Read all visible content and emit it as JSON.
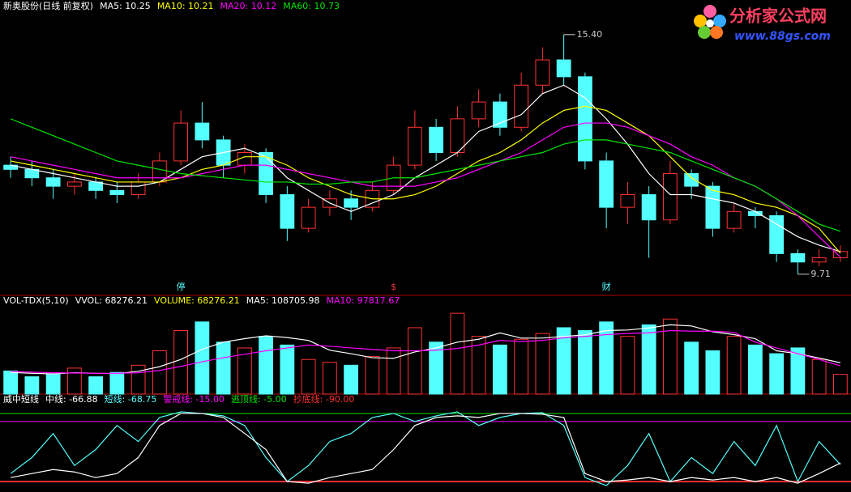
{
  "chart_data": [
    {
      "type": "candlestick",
      "title": "新奥股份(日线 前复权)",
      "open": [
        12.3,
        12.2,
        12.0,
        11.8,
        11.9,
        11.7,
        11.6,
        11.9,
        12.4,
        13.3,
        12.9,
        12.3,
        12.6,
        11.6,
        10.8,
        11.3,
        11.5,
        11.3,
        11.7,
        12.3,
        13.2,
        12.6,
        13.4,
        13.8,
        13.2,
        14.2,
        14.8,
        14.4,
        12.4,
        11.3,
        11.6,
        11.0,
        12.1,
        11.8,
        10.8,
        11.2,
        11.1,
        10.2,
        10.0,
        10.1
      ],
      "close": [
        12.2,
        12.0,
        11.8,
        11.9,
        11.7,
        11.6,
        11.9,
        12.4,
        13.3,
        12.9,
        12.3,
        12.6,
        11.6,
        10.8,
        11.3,
        11.5,
        11.3,
        11.7,
        12.3,
        13.2,
        12.6,
        13.4,
        13.8,
        13.2,
        14.2,
        14.8,
        14.4,
        12.4,
        11.3,
        11.6,
        11.0,
        12.1,
        11.8,
        10.8,
        11.2,
        11.1,
        10.2,
        10.0,
        10.1,
        10.25
      ],
      "high": [
        12.5,
        12.4,
        12.2,
        12.1,
        12.0,
        11.9,
        12.1,
        12.6,
        13.6,
        13.8,
        13.0,
        12.8,
        12.7,
        11.8,
        11.5,
        11.7,
        11.7,
        11.9,
        12.5,
        13.6,
        13.4,
        13.7,
        14.1,
        14.0,
        14.5,
        15.1,
        15.4,
        14.5,
        12.6,
        11.9,
        11.8,
        12.4,
        12.2,
        11.9,
        11.4,
        11.3,
        11.2,
        10.3,
        10.3,
        10.4
      ],
      "low": [
        12.0,
        11.8,
        11.5,
        11.6,
        11.5,
        11.4,
        11.5,
        11.8,
        12.3,
        12.7,
        12.0,
        12.1,
        11.4,
        10.5,
        10.7,
        11.1,
        11.0,
        11.2,
        11.6,
        12.2,
        12.4,
        12.5,
        13.2,
        13.0,
        13.1,
        14.0,
        14.2,
        12.2,
        10.8,
        10.9,
        10.1,
        10.9,
        11.5,
        10.6,
        10.7,
        10.8,
        10.0,
        9.71,
        9.9,
        10.0
      ],
      "up_color": "#ff3232",
      "down_color": "#54ffff",
      "series": [
        {
          "name": "MA5: 10.25",
          "color": "#ffffff",
          "values": [
            12.3,
            12.2,
            12.1,
            12.0,
            11.9,
            11.8,
            11.8,
            11.9,
            12.2,
            12.5,
            12.6,
            12.7,
            12.5,
            12.0,
            11.7,
            11.4,
            11.2,
            11.4,
            11.6,
            12.0,
            12.3,
            12.6,
            13.1,
            13.3,
            13.5,
            14.0,
            14.2,
            13.9,
            13.4,
            12.8,
            12.1,
            11.6,
            11.6,
            11.5,
            11.4,
            11.2,
            10.9,
            10.6,
            10.4,
            10.25
          ]
        },
        {
          "name": "MA10: 10.21",
          "color": "#ffff00",
          "values": [
            12.4,
            12.3,
            12.2,
            12.1,
            12.0,
            11.9,
            11.9,
            11.9,
            12.0,
            12.2,
            12.3,
            12.5,
            12.5,
            12.3,
            12.0,
            11.8,
            11.6,
            11.5,
            11.5,
            11.6,
            11.8,
            12.1,
            12.4,
            12.6,
            12.9,
            13.3,
            13.6,
            13.7,
            13.6,
            13.3,
            13.0,
            12.5,
            12.0,
            11.7,
            11.6,
            11.4,
            11.3,
            11.1,
            10.8,
            10.21
          ]
        },
        {
          "name": "MA20: 10.12",
          "color": "#ff00ff",
          "values": [
            12.5,
            12.4,
            12.3,
            12.2,
            12.1,
            12.0,
            12.0,
            12.0,
            12.0,
            12.1,
            12.2,
            12.3,
            12.3,
            12.2,
            12.1,
            12.0,
            11.9,
            11.8,
            11.8,
            11.8,
            11.9,
            12.0,
            12.2,
            12.4,
            12.6,
            12.9,
            13.2,
            13.3,
            13.3,
            13.2,
            13.0,
            12.8,
            12.5,
            12.3,
            12.0,
            11.8,
            11.5,
            11.1,
            10.6,
            10.12
          ]
        },
        {
          "name": "MA60: 10.73",
          "color": "#00e600",
          "values": [
            13.4,
            13.2,
            13.0,
            12.8,
            12.6,
            12.4,
            12.3,
            12.2,
            12.1,
            12.05,
            12.0,
            11.95,
            11.9,
            11.9,
            11.85,
            11.85,
            11.9,
            11.9,
            12.0,
            12.0,
            12.1,
            12.2,
            12.3,
            12.4,
            12.5,
            12.6,
            12.8,
            12.9,
            12.9,
            12.8,
            12.7,
            12.6,
            12.4,
            12.2,
            12.0,
            11.8,
            11.5,
            11.2,
            10.9,
            10.73
          ]
        }
      ],
      "ylim": [
        9.4,
        15.8
      ],
      "annotations": [
        {
          "text": "15.40",
          "index": 26,
          "value": 15.4
        },
        {
          "text": "9.71",
          "index": 37,
          "value": 9.71
        }
      ],
      "markers": [
        {
          "text": "停",
          "index": 8
        },
        {
          "text": "$",
          "index": 18
        },
        {
          "text": "财",
          "index": 28
        }
      ]
    },
    {
      "type": "bar",
      "title": "VOL-TDX(5,10)",
      "label": "VVOL: 68276.21",
      "series": [
        {
          "name": "VOLUME: 68276.21",
          "color": "#ffff00",
          "values": [
            80000,
            60000,
            70000,
            90000,
            60000,
            75000,
            100000,
            150000,
            220000,
            250000,
            180000,
            160000,
            200000,
            170000,
            120000,
            110000,
            100000,
            130000,
            160000,
            230000,
            180000,
            280000,
            200000,
            170000,
            190000,
            210000,
            230000,
            220000,
            250000,
            200000,
            240000,
            260000,
            180000,
            150000,
            200000,
            170000,
            140000,
            160000,
            120000,
            68276.21
          ]
        },
        {
          "name": "MA5: 108705.98",
          "color": "#ffffff",
          "values": [
            75000,
            72000,
            70000,
            74000,
            72000,
            71000,
            79000,
            95000,
            120000,
            155000,
            180000,
            192000,
            202000,
            196000,
            186000,
            152000,
            140000,
            126000,
            124000,
            146000,
            160000,
            180000,
            190000,
            212000,
            194000,
            194000,
            200000,
            205000,
            220000,
            222000,
            229000,
            240000,
            236000,
            216000,
            206000,
            192000,
            150000,
            140000,
            125000,
            108705.98
          ]
        },
        {
          "name": "MA10: 97817.67",
          "color": "#ff00ff",
          "values": [
            78000,
            76000,
            74000,
            73000,
            72000,
            72000,
            74000,
            82000,
            96000,
            112000,
            126000,
            138000,
            150000,
            160000,
            170000,
            166000,
            160000,
            155000,
            150000,
            150000,
            152000,
            158000,
            170000,
            186000,
            182000,
            186000,
            195000,
            200000,
            206000,
            210000,
            212000,
            220000,
            218000,
            218000,
            214000,
            180000,
            160000,
            140000,
            120000,
            97817.67
          ]
        }
      ],
      "ylim": [
        0,
        300000
      ]
    },
    {
      "type": "line",
      "title": "威中短线",
      "series": [
        {
          "name": "中线: -66.88",
          "color": "#ffffff",
          "values": [
            -85,
            -80,
            -75,
            -78,
            -85,
            -80,
            -60,
            -20,
            -5,
            -5,
            -10,
            -30,
            -50,
            -90,
            -92,
            -85,
            -80,
            -75,
            -50,
            -20,
            -10,
            -8,
            -10,
            -5,
            -5,
            -6,
            -10,
            -80,
            -90,
            -88,
            -85,
            -90,
            -85,
            -88,
            -85,
            -90,
            -85,
            -92,
            -80,
            -66.88
          ]
        },
        {
          "name": "短线: -68.75",
          "color": "#54ffff",
          "values": [
            -80,
            -60,
            -30,
            -70,
            -50,
            -20,
            -40,
            -10,
            -3,
            -5,
            -8,
            -20,
            -60,
            -90,
            -70,
            -40,
            -30,
            -10,
            -5,
            -15,
            -8,
            -3,
            -20,
            -10,
            -5,
            -4,
            -20,
            -85,
            -95,
            -70,
            -30,
            -90,
            -60,
            -80,
            -40,
            -70,
            -20,
            -90,
            -40,
            -68.75
          ]
        }
      ],
      "levels": [
        {
          "name": "警戒线: -15.00",
          "value": -15,
          "color": "#ff00ff"
        },
        {
          "name": "逃顶线: -5.00",
          "value": -5,
          "color": "#00e600"
        },
        {
          "name": "抄底线: -90.00",
          "value": -90,
          "color": "#ff3232"
        }
      ],
      "ylim": [
        -101,
        1
      ]
    }
  ],
  "watermark": {
    "title": "分析家公式网",
    "url": "www.88gs.com"
  }
}
